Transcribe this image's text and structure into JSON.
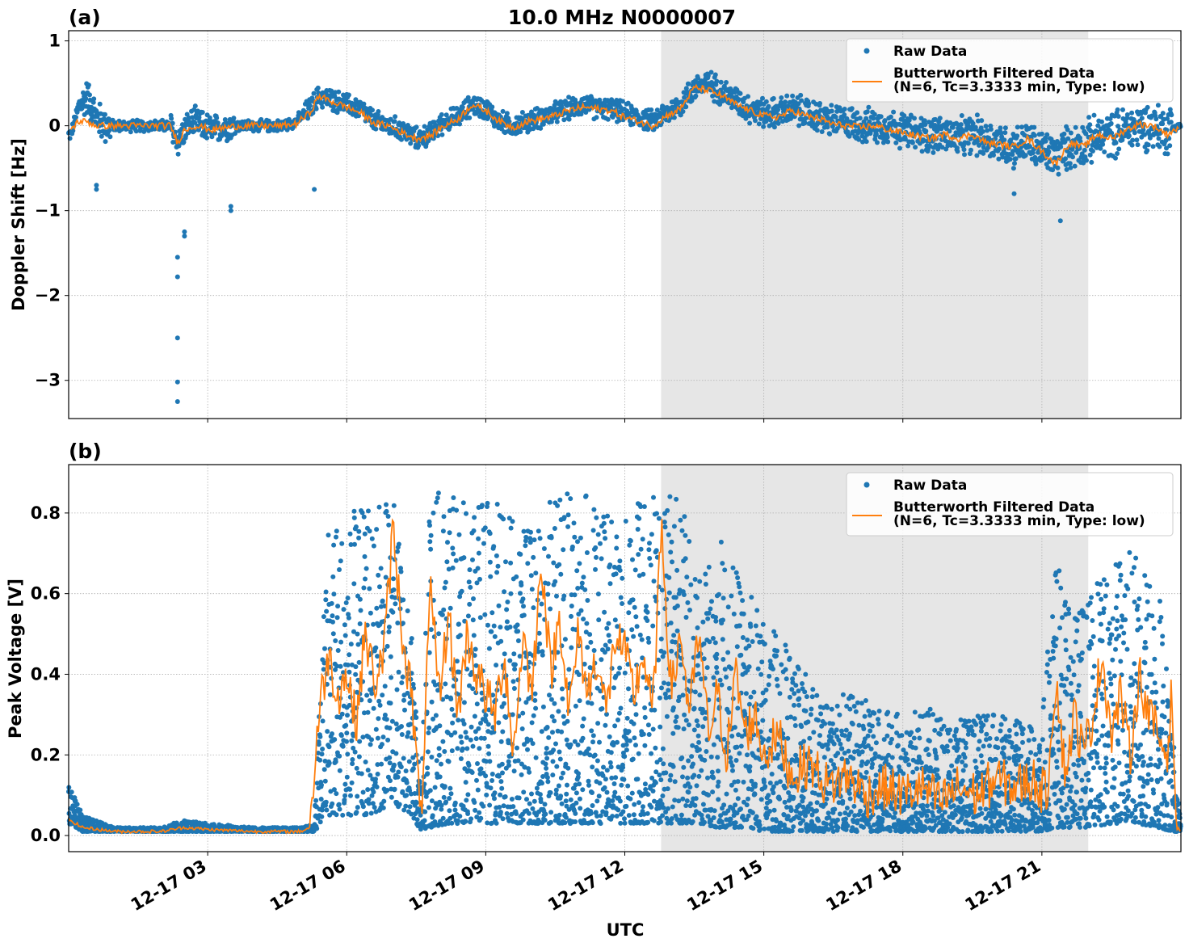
{
  "figure": {
    "title": "10.0 MHz N0000007",
    "xlabel": "UTC"
  },
  "colors": {
    "raw": "#1f77b4",
    "filtered": "#ff7f0e",
    "night_shading": "#e6e6e6",
    "grid": "#b0b0b0"
  },
  "chart_data": [
    {
      "type": "scatter",
      "panel_label": "(a)",
      "ylabel": "Doppler Shift [Hz]",
      "xlim": [
        "2025-12-17 00:00",
        "2025-12-18 00:00"
      ],
      "ylim": [
        -3.45,
        1.12
      ],
      "yticks": [
        1,
        0,
        -1,
        -2,
        -3
      ],
      "ytick_labels": [
        "1",
        "0",
        "−1",
        "−2",
        "−3"
      ],
      "xticks": [
        "12-17 03",
        "12-17 06",
        "12-17 09",
        "12-17 12",
        "12-17 15",
        "12-17 18",
        "12-17 21"
      ],
      "shaded_interval": [
        "12-17 12:47",
        "12-17 22:00"
      ],
      "grid": true,
      "legend_position": "top-right",
      "series": [
        {
          "name": "Raw Data",
          "style": "markers",
          "x_hours": [
            0.05,
            0.2,
            0.4,
            0.6,
            0.8,
            1.0,
            1.3,
            1.6,
            1.9,
            2.2,
            2.35,
            2.5,
            2.7,
            2.9,
            3.1,
            3.4,
            3.7,
            4.0,
            4.3,
            4.6,
            4.9,
            5.2,
            5.4,
            5.7,
            6.0,
            6.3,
            6.6,
            6.9,
            7.2,
            7.5,
            7.8,
            8.1,
            8.4,
            8.7,
            9.0,
            9.3,
            9.6,
            9.9,
            10.2,
            10.5,
            10.8,
            11.1,
            11.4,
            11.7,
            12.0,
            12.3,
            12.6,
            12.9,
            13.2,
            13.5,
            13.8,
            14.1,
            14.4,
            14.7,
            15.0,
            15.3,
            15.6,
            15.9,
            16.2,
            16.5,
            16.8,
            17.1,
            17.4,
            17.7,
            18.0,
            18.3,
            18.6,
            18.9,
            19.2,
            19.5,
            19.8,
            20.1,
            20.4,
            20.7,
            21.0,
            21.3,
            21.6,
            21.9,
            22.2,
            22.5,
            22.8,
            23.1,
            23.4,
            23.7,
            23.95
          ],
          "values": [
            -0.1,
            0.2,
            0.35,
            0.1,
            0.0,
            0.0,
            0.0,
            0.0,
            0.0,
            0.0,
            -0.2,
            -0.05,
            0.05,
            0.0,
            -0.05,
            0.0,
            0.0,
            0.0,
            0.0,
            0.0,
            0.05,
            0.2,
            0.35,
            0.3,
            0.25,
            0.2,
            0.05,
            0.0,
            -0.05,
            -0.15,
            -0.1,
            0.05,
            0.1,
            0.25,
            0.2,
            0.05,
            0.0,
            0.05,
            0.1,
            0.15,
            0.2,
            0.25,
            0.2,
            0.2,
            0.15,
            0.1,
            0.05,
            0.15,
            0.25,
            0.45,
            0.5,
            0.4,
            0.3,
            0.2,
            0.15,
            0.15,
            0.2,
            0.15,
            0.1,
            0.05,
            0.05,
            0.0,
            0.0,
            0.0,
            -0.05,
            -0.1,
            -0.1,
            -0.1,
            -0.15,
            -0.1,
            -0.15,
            -0.2,
            -0.25,
            -0.2,
            -0.3,
            -0.35,
            -0.25,
            -0.2,
            -0.15,
            -0.1,
            -0.05,
            0.0,
            0.0,
            -0.05,
            0.0
          ],
          "outliers_x_hours": [
            2.35,
            2.35,
            2.35,
            2.35,
            2.35,
            2.5,
            2.5,
            3.5,
            3.5,
            5.3,
            0.6,
            0.6,
            21.4,
            20.4
          ],
          "outliers_values": [
            -3.25,
            -3.02,
            -2.5,
            -1.78,
            -1.55,
            -1.25,
            -1.3,
            -0.95,
            -1.0,
            -0.75,
            -0.7,
            -0.75,
            -1.12,
            -0.8
          ]
        },
        {
          "name": "Butterworth Filtered Data\n(N=6, Tc=3.3333 min, Type: low)",
          "style": "line",
          "x_hours": [
            0.05,
            0.2,
            0.4,
            0.6,
            0.8,
            1.0,
            1.3,
            1.6,
            1.9,
            2.2,
            2.35,
            2.5,
            2.7,
            2.9,
            3.1,
            3.4,
            3.7,
            4.0,
            4.3,
            4.6,
            4.9,
            5.2,
            5.4,
            5.7,
            6.0,
            6.3,
            6.6,
            6.9,
            7.2,
            7.5,
            7.8,
            8.1,
            8.4,
            8.7,
            9.0,
            9.3,
            9.6,
            9.9,
            10.2,
            10.5,
            10.8,
            11.1,
            11.4,
            11.7,
            12.0,
            12.3,
            12.6,
            12.9,
            13.2,
            13.5,
            13.8,
            14.1,
            14.4,
            14.7,
            15.0,
            15.3,
            15.6,
            15.9,
            16.2,
            16.5,
            16.8,
            17.1,
            17.4,
            17.7,
            18.0,
            18.3,
            18.6,
            18.9,
            19.2,
            19.5,
            19.8,
            20.1,
            20.4,
            20.7,
            21.0,
            21.3,
            21.6,
            21.9,
            22.2,
            22.5,
            22.8,
            23.1,
            23.4,
            23.7,
            23.95
          ],
          "values": [
            -0.05,
            0.05,
            0.05,
            0.0,
            0.0,
            0.0,
            0.0,
            0.0,
            0.0,
            0.0,
            -0.2,
            -0.05,
            0.0,
            -0.02,
            -0.05,
            -0.02,
            0.0,
            0.0,
            0.0,
            0.0,
            0.02,
            0.15,
            0.35,
            0.28,
            0.22,
            0.15,
            0.03,
            0.0,
            -0.08,
            -0.15,
            -0.12,
            0.0,
            0.08,
            0.25,
            0.18,
            0.05,
            -0.02,
            0.05,
            0.08,
            0.12,
            0.18,
            0.22,
            0.2,
            0.18,
            0.1,
            0.05,
            0.0,
            0.12,
            0.2,
            0.45,
            0.42,
            0.35,
            0.25,
            0.18,
            0.12,
            0.1,
            0.18,
            0.12,
            0.08,
            0.02,
            0.0,
            -0.02,
            0.0,
            -0.05,
            -0.08,
            -0.12,
            -0.15,
            -0.1,
            -0.15,
            -0.1,
            -0.2,
            -0.22,
            -0.25,
            -0.15,
            -0.3,
            -0.45,
            -0.2,
            -0.25,
            -0.1,
            -0.15,
            -0.05,
            0.02,
            0.0,
            -0.1,
            -0.02
          ]
        }
      ]
    },
    {
      "type": "scatter",
      "panel_label": "(b)",
      "ylabel": "Peak Voltage [V]",
      "xlim": [
        "2025-12-17 00:00",
        "2025-12-18 00:00"
      ],
      "ylim": [
        -0.04,
        0.92
      ],
      "yticks": [
        0.8,
        0.6,
        0.4,
        0.2,
        0.0
      ],
      "ytick_labels": [
        "0.8",
        "0.6",
        "0.4",
        "0.2",
        "0.0"
      ],
      "xticks": [
        "12-17 03",
        "12-17 06",
        "12-17 09",
        "12-17 12",
        "12-17 15",
        "12-17 18",
        "12-17 21"
      ],
      "shaded_interval": [
        "12-17 12:47",
        "12-17 22:00"
      ],
      "grid": true,
      "legend_position": "top-right",
      "series": [
        {
          "name": "Raw Data",
          "style": "band",
          "x_hours": [
            0.0,
            0.3,
            1.0,
            2.0,
            2.5,
            3.0,
            4.0,
            5.0,
            5.3,
            5.6,
            6.0,
            6.5,
            7.0,
            7.4,
            7.6,
            7.8,
            8.2,
            8.6,
            9.0,
            9.5,
            10.0,
            10.5,
            11.0,
            11.5,
            12.0,
            12.5,
            12.8,
            13.2,
            13.6,
            14.0,
            14.5,
            15.0,
            15.5,
            16.0,
            16.5,
            17.0,
            17.5,
            18.0,
            18.5,
            19.0,
            19.5,
            20.0,
            20.5,
            21.0,
            21.3,
            21.6,
            22.0,
            22.5,
            23.0,
            23.5,
            23.8,
            24.0
          ],
          "upper": [
            0.13,
            0.05,
            0.02,
            0.02,
            0.04,
            0.03,
            0.02,
            0.02,
            0.03,
            0.82,
            0.8,
            0.82,
            0.85,
            0.5,
            0.1,
            0.88,
            0.85,
            0.82,
            0.85,
            0.8,
            0.75,
            0.86,
            0.88,
            0.8,
            0.82,
            0.84,
            0.84,
            0.85,
            0.65,
            0.75,
            0.65,
            0.55,
            0.48,
            0.38,
            0.35,
            0.35,
            0.32,
            0.3,
            0.32,
            0.3,
            0.3,
            0.3,
            0.3,
            0.3,
            0.72,
            0.55,
            0.6,
            0.7,
            0.72,
            0.68,
            0.3,
            0.02
          ],
          "lower": [
            0.03,
            0.01,
            0.01,
            0.01,
            0.01,
            0.01,
            0.01,
            0.01,
            0.01,
            0.05,
            0.05,
            0.05,
            0.08,
            0.05,
            0.01,
            0.02,
            0.03,
            0.03,
            0.03,
            0.03,
            0.03,
            0.03,
            0.03,
            0.03,
            0.03,
            0.03,
            0.03,
            0.03,
            0.03,
            0.02,
            0.02,
            0.01,
            0.01,
            0.01,
            0.01,
            0.01,
            0.01,
            0.01,
            0.01,
            0.01,
            0.01,
            0.01,
            0.01,
            0.01,
            0.02,
            0.02,
            0.02,
            0.03,
            0.03,
            0.02,
            0.01,
            0.01
          ]
        },
        {
          "name": "Butterworth Filtered Data\n(N=6, Tc=3.3333 min, Type: low)",
          "style": "line",
          "x_hours": [
            0.0,
            0.3,
            1.0,
            2.0,
            2.5,
            3.0,
            4.0,
            5.0,
            5.2,
            5.4,
            5.6,
            5.8,
            6.0,
            6.2,
            6.4,
            6.6,
            6.8,
            7.0,
            7.2,
            7.4,
            7.6,
            7.8,
            8.0,
            8.2,
            8.4,
            8.6,
            8.8,
            9.0,
            9.2,
            9.4,
            9.6,
            9.8,
            10.0,
            10.2,
            10.4,
            10.6,
            10.8,
            11.0,
            11.2,
            11.4,
            11.6,
            11.8,
            12.0,
            12.2,
            12.4,
            12.6,
            12.8,
            13.0,
            13.2,
            13.4,
            13.6,
            13.8,
            14.0,
            14.2,
            14.4,
            14.6,
            14.8,
            15.0,
            15.3,
            15.6,
            16.0,
            16.4,
            16.8,
            17.2,
            17.6,
            18.0,
            18.4,
            18.8,
            19.2,
            19.6,
            20.0,
            20.4,
            20.8,
            21.1,
            21.3,
            21.5,
            21.7,
            21.9,
            22.1,
            22.3,
            22.5,
            22.7,
            22.9,
            23.1,
            23.3,
            23.5,
            23.7,
            23.8,
            23.9,
            24.0
          ],
          "values": [
            0.04,
            0.02,
            0.01,
            0.01,
            0.02,
            0.015,
            0.01,
            0.01,
            0.02,
            0.3,
            0.45,
            0.35,
            0.4,
            0.28,
            0.5,
            0.38,
            0.45,
            0.76,
            0.5,
            0.35,
            0.03,
            0.6,
            0.35,
            0.55,
            0.3,
            0.5,
            0.4,
            0.35,
            0.3,
            0.45,
            0.2,
            0.5,
            0.35,
            0.7,
            0.4,
            0.55,
            0.3,
            0.5,
            0.35,
            0.45,
            0.3,
            0.5,
            0.45,
            0.35,
            0.45,
            0.3,
            0.77,
            0.35,
            0.5,
            0.3,
            0.5,
            0.25,
            0.35,
            0.2,
            0.4,
            0.25,
            0.3,
            0.2,
            0.25,
            0.15,
            0.18,
            0.12,
            0.15,
            0.1,
            0.12,
            0.1,
            0.12,
            0.08,
            0.12,
            0.1,
            0.14,
            0.12,
            0.14,
            0.1,
            0.4,
            0.15,
            0.3,
            0.2,
            0.3,
            0.45,
            0.25,
            0.35,
            0.2,
            0.4,
            0.3,
            0.25,
            0.2,
            0.35,
            0.02,
            0.01
          ]
        }
      ]
    }
  ]
}
